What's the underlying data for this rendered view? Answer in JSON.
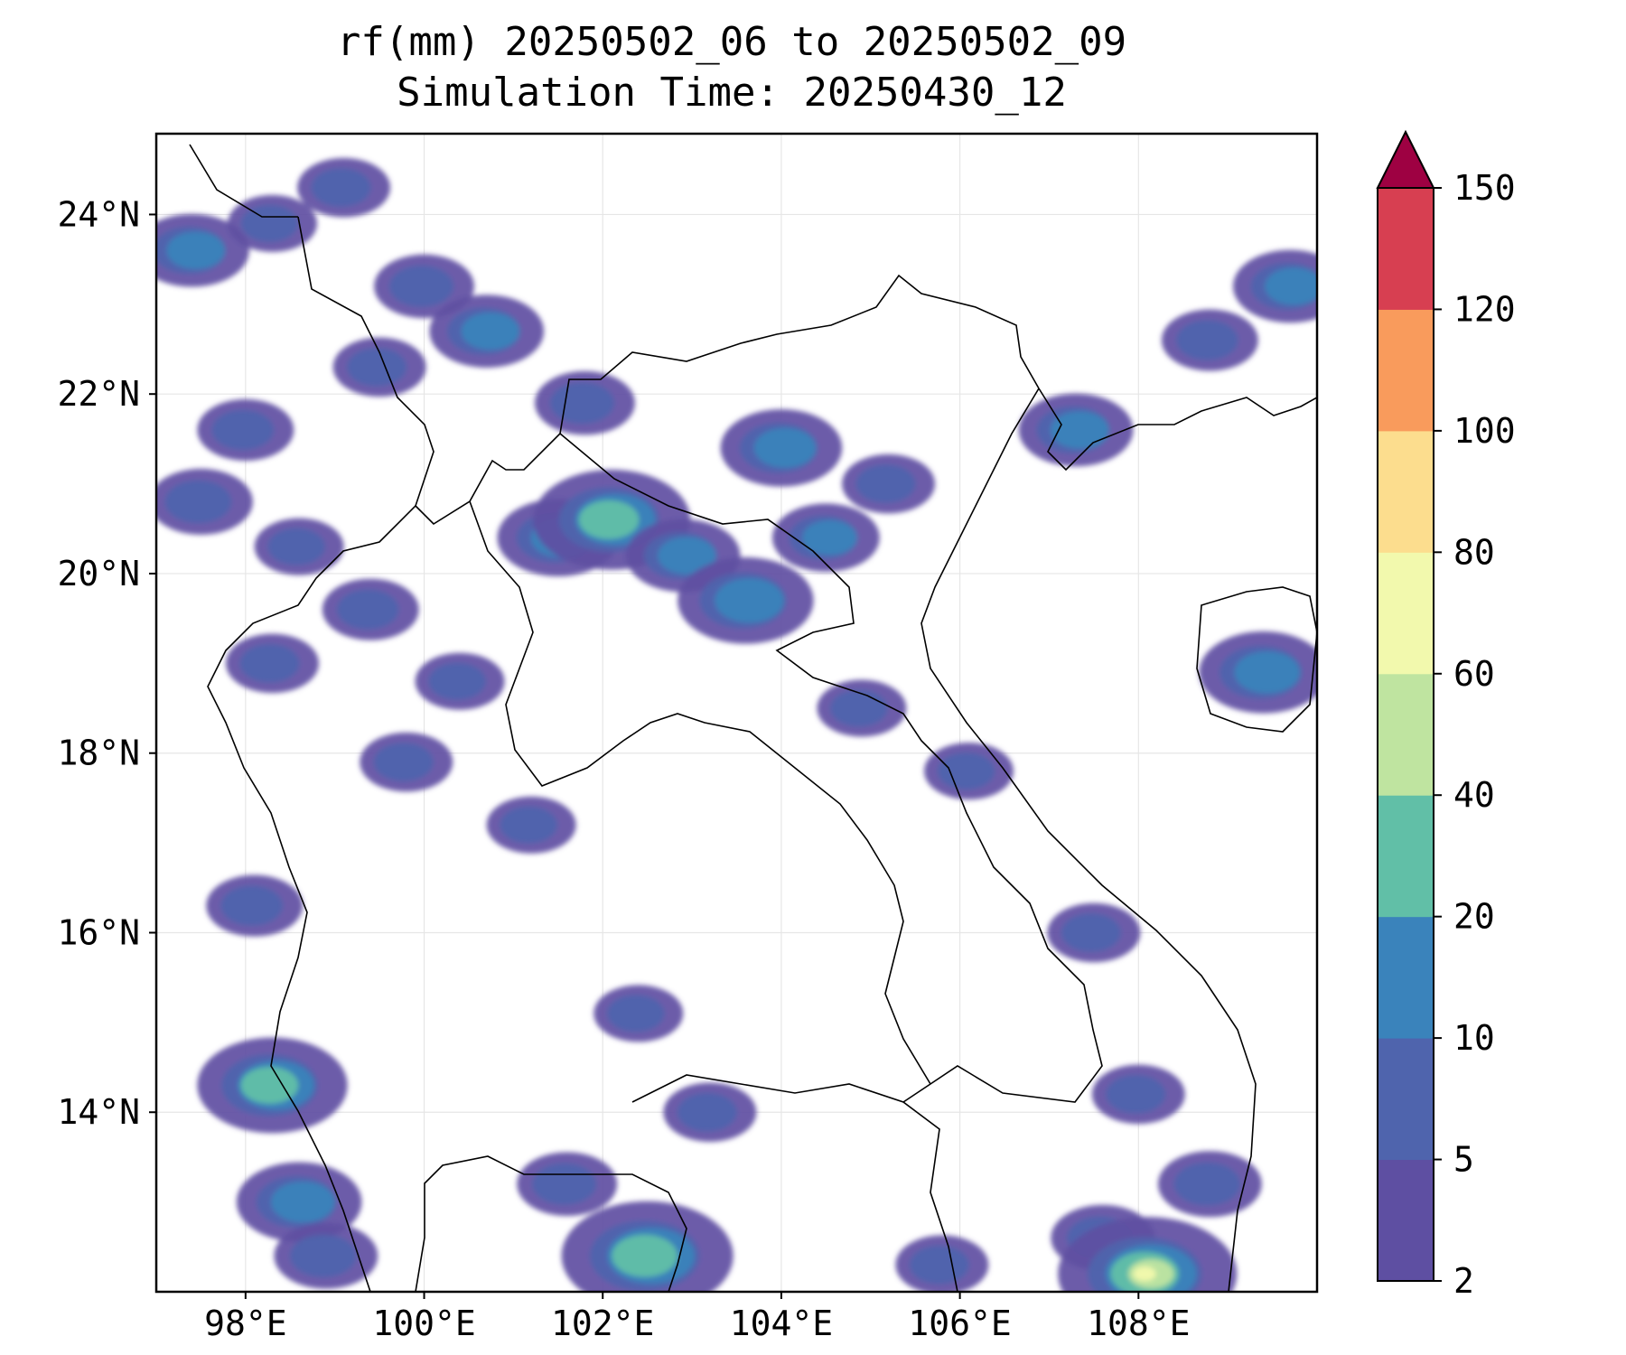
{
  "title": {
    "line1": "rf(mm) 20250502_06 to 20250502_09",
    "line2": "Simulation Time: 20250430_12"
  },
  "map": {
    "lon_range": [
      97.0,
      110.0
    ],
    "lat_range": [
      12.0,
      24.9
    ],
    "x_ticks": [
      {
        "value": 98,
        "label": "98°E"
      },
      {
        "value": 100,
        "label": "100°E"
      },
      {
        "value": 102,
        "label": "102°E"
      },
      {
        "value": 104,
        "label": "104°E"
      },
      {
        "value": 106,
        "label": "106°E"
      },
      {
        "value": 108,
        "label": "108°E"
      }
    ],
    "y_ticks": [
      {
        "value": 24,
        "label": "24°N"
      },
      {
        "value": 22,
        "label": "22°N"
      },
      {
        "value": 20,
        "label": "20°N"
      },
      {
        "value": 18,
        "label": "18°N"
      },
      {
        "value": 16,
        "label": "16°N"
      },
      {
        "value": 14,
        "label": "14°N"
      }
    ],
    "grid": true,
    "border_color": "#000000"
  },
  "colorbar": {
    "levels": [
      2,
      5,
      10,
      20,
      40,
      60,
      80,
      100,
      120,
      150
    ],
    "labels": [
      "2",
      "5",
      "10",
      "20",
      "40",
      "60",
      "80",
      "100",
      "120",
      "150"
    ],
    "colors": [
      "#5e4fa2",
      "#4f64ad",
      "#3a83bb",
      "#61bfa7",
      "#bfe4a0",
      "#f2f9ad",
      "#fcdd8e",
      "#f99b5c",
      "#d73f51"
    ],
    "extend_color": "#9e0142",
    "extend": "max"
  },
  "rain_cells": [
    {
      "lon": 97.4,
      "lat": 23.6,
      "mm": 12
    },
    {
      "lon": 98.3,
      "lat": 23.9,
      "mm": 5
    },
    {
      "lon": 99.1,
      "lat": 24.3,
      "mm": 6
    },
    {
      "lon": 100.0,
      "lat": 23.2,
      "mm": 8
    },
    {
      "lon": 100.7,
      "lat": 22.7,
      "mm": 12
    },
    {
      "lon": 99.5,
      "lat": 22.3,
      "mm": 6
    },
    {
      "lon": 98.0,
      "lat": 21.6,
      "mm": 7
    },
    {
      "lon": 97.5,
      "lat": 20.8,
      "mm": 9
    },
    {
      "lon": 98.6,
      "lat": 20.3,
      "mm": 5
    },
    {
      "lon": 99.4,
      "lat": 19.6,
      "mm": 7
    },
    {
      "lon": 98.3,
      "lat": 19.0,
      "mm": 6
    },
    {
      "lon": 100.4,
      "lat": 18.8,
      "mm": 5
    },
    {
      "lon": 99.8,
      "lat": 17.9,
      "mm": 6
    },
    {
      "lon": 101.2,
      "lat": 17.2,
      "mm": 5
    },
    {
      "lon": 98.1,
      "lat": 16.3,
      "mm": 7
    },
    {
      "lon": 98.3,
      "lat": 14.3,
      "mm": 22
    },
    {
      "lon": 98.6,
      "lat": 13.0,
      "mm": 15
    },
    {
      "lon": 98.9,
      "lat": 12.4,
      "mm": 9
    },
    {
      "lon": 101.8,
      "lat": 21.9,
      "mm": 8
    },
    {
      "lon": 101.5,
      "lat": 20.4,
      "mm": 14
    },
    {
      "lon": 102.1,
      "lat": 20.6,
      "mm": 24
    },
    {
      "lon": 102.9,
      "lat": 20.2,
      "mm": 12
    },
    {
      "lon": 103.6,
      "lat": 19.7,
      "mm": 18
    },
    {
      "lon": 104.0,
      "lat": 21.4,
      "mm": 14
    },
    {
      "lon": 104.5,
      "lat": 20.4,
      "mm": 10
    },
    {
      "lon": 105.2,
      "lat": 21.0,
      "mm": 6
    },
    {
      "lon": 107.3,
      "lat": 21.6,
      "mm": 12
    },
    {
      "lon": 108.8,
      "lat": 22.6,
      "mm": 7
    },
    {
      "lon": 109.7,
      "lat": 23.2,
      "mm": 12
    },
    {
      "lon": 109.4,
      "lat": 18.9,
      "mm": 16
    },
    {
      "lon": 104.9,
      "lat": 18.5,
      "mm": 5
    },
    {
      "lon": 106.1,
      "lat": 17.8,
      "mm": 5
    },
    {
      "lon": 107.5,
      "lat": 16.0,
      "mm": 6
    },
    {
      "lon": 108.0,
      "lat": 14.2,
      "mm": 6
    },
    {
      "lon": 108.8,
      "lat": 13.2,
      "mm": 9
    },
    {
      "lon": 101.6,
      "lat": 13.2,
      "mm": 8
    },
    {
      "lon": 102.5,
      "lat": 12.4,
      "mm": 28
    },
    {
      "lon": 103.2,
      "lat": 14.0,
      "mm": 6
    },
    {
      "lon": 107.6,
      "lat": 12.6,
      "mm": 9
    },
    {
      "lon": 108.1,
      "lat": 12.2,
      "mm": 70
    },
    {
      "lon": 105.8,
      "lat": 12.3,
      "mm": 6
    },
    {
      "lon": 102.4,
      "lat": 15.1,
      "mm": 5
    }
  ]
}
